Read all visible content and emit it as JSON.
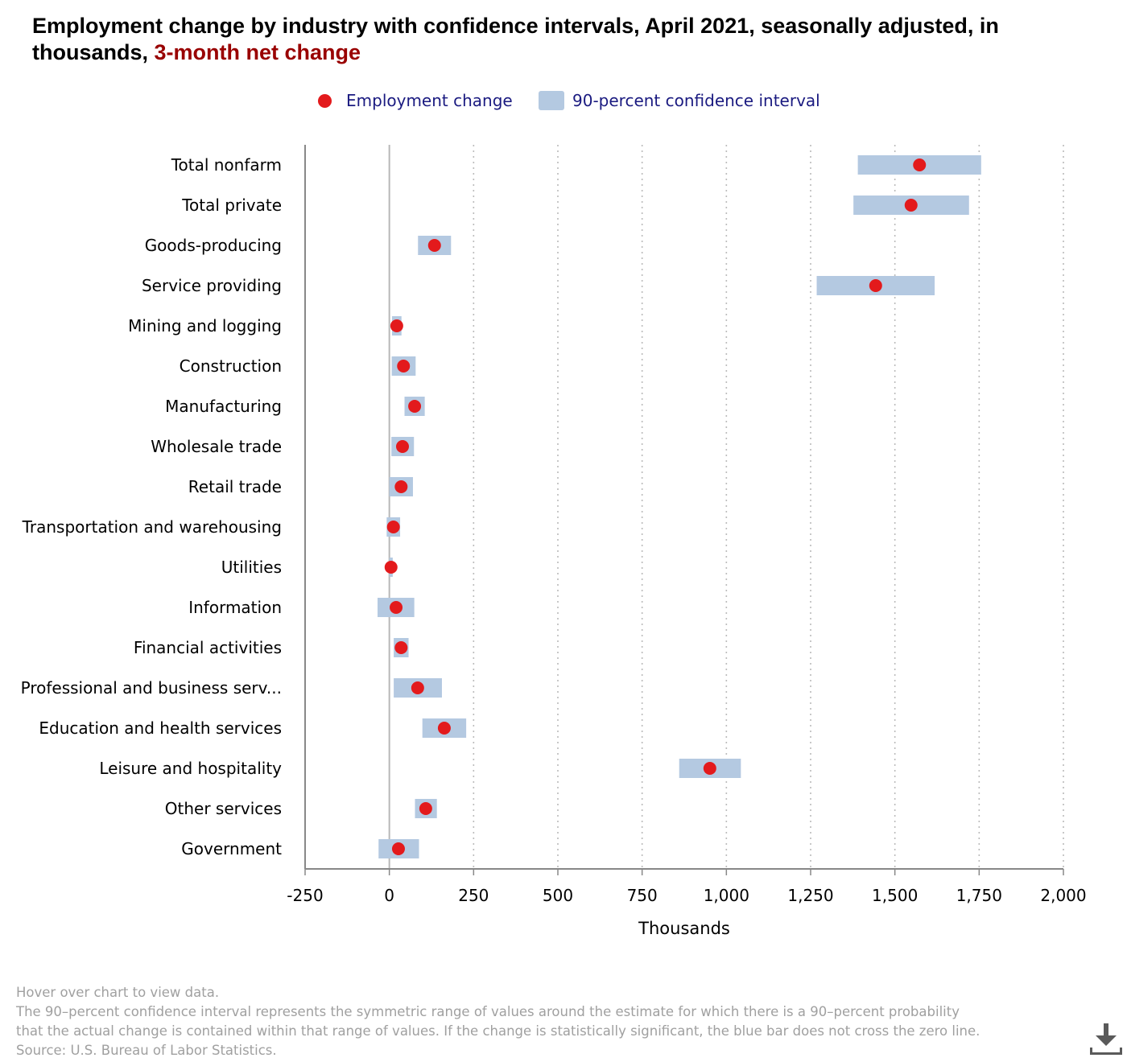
{
  "title": {
    "main": "Employment change by industry with confidence intervals, April 2021, seasonally adjusted, in thousands,",
    "highlight": "3-month net change"
  },
  "legend": {
    "point_label": "Employment change",
    "interval_label": "90-percent confidence interval"
  },
  "colors": {
    "point": "#e31a1c",
    "interval": "#b4c9e1",
    "highlight": "#990000",
    "legend_text": "#1a1a80"
  },
  "chart_data": {
    "type": "scatter",
    "orientation": "horizontal",
    "xlabel": "Thousands",
    "xlim": [
      -250,
      2000
    ],
    "xticks": [
      -250,
      0,
      250,
      500,
      750,
      1000,
      1250,
      1500,
      1750,
      2000
    ],
    "xtick_labels": [
      "-250",
      "0",
      "250",
      "500",
      "750",
      "1,000",
      "1,250",
      "1,500",
      "1,750",
      "2,000"
    ],
    "gridlines": "vertical dotted",
    "categories": [
      "Total nonfarm",
      "Total private",
      "Goods-producing",
      "Service providing",
      "Mining and logging",
      "Construction",
      "Manufacturing",
      "Wholesale trade",
      "Retail trade",
      "Transportation and warehousing",
      "Utilities",
      "Information",
      "Financial activities",
      "Professional and business serv...",
      "Education and health services",
      "Leisure and hospitality",
      "Other services",
      "Government"
    ],
    "series": [
      {
        "name": "Employment change",
        "values": [
          1573,
          1548,
          134,
          1443,
          22,
          42,
          75,
          39,
          35,
          12,
          5,
          20,
          35,
          84,
          163,
          951,
          108,
          27
        ]
      },
      {
        "name": "90-percent confidence interval",
        "low": [
          1390,
          1377,
          85,
          1268,
          8,
          7,
          45,
          6,
          0,
          -8,
          0,
          -35,
          13,
          13,
          98,
          860,
          76,
          -32
        ],
        "high": [
          1756,
          1720,
          183,
          1618,
          36,
          78,
          105,
          73,
          70,
          32,
          10,
          74,
          57,
          156,
          228,
          1043,
          141,
          88
        ]
      }
    ]
  },
  "footer": {
    "line1": "Hover over chart to view data.",
    "line2": "The 90–percent confidence interval represents the symmetric range of values around the estimate for which there is a 90–percent probability",
    "line3": "that the actual change is contained within that range of values. If the change is statistically significant, the blue bar does not cross the zero line.",
    "line4": "Source: U.S. Bureau of Labor Statistics."
  },
  "download": {
    "icon": "download-icon"
  }
}
